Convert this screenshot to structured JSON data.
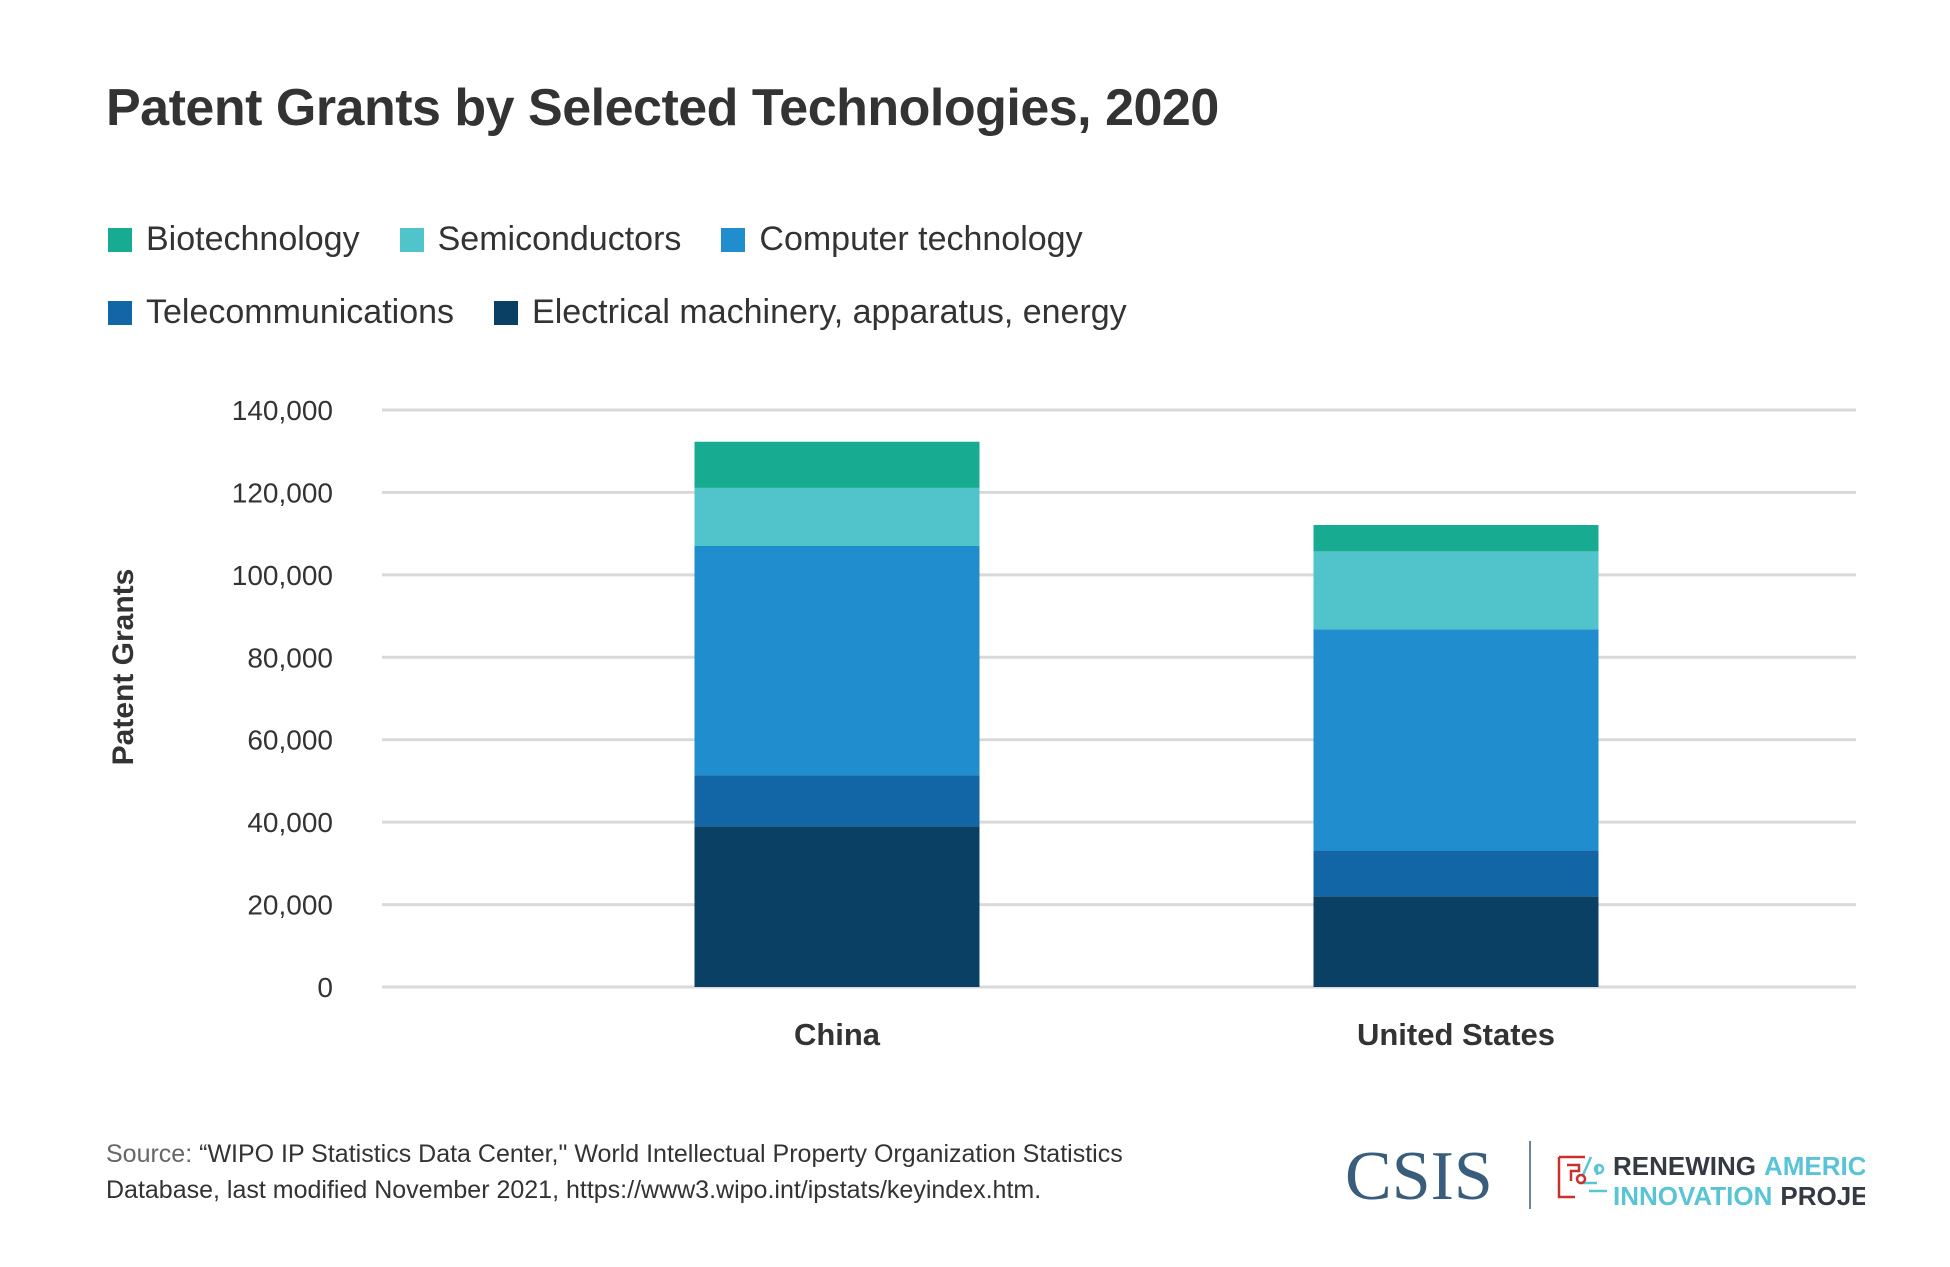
{
  "chart_data": {
    "type": "bar",
    "stacked": true,
    "title": "Patent Grants by Selected Technologies, 2020",
    "xlabel": "",
    "ylabel": "Patent Grants",
    "ylim": [
      0,
      140000
    ],
    "yticks": [
      0,
      20000,
      40000,
      60000,
      80000,
      100000,
      120000,
      140000
    ],
    "ytick_labels": [
      "0",
      "20,000",
      "40,000",
      "60,000",
      "80,000",
      "100,000",
      "120,000",
      "140,000"
    ],
    "grid": true,
    "legend_position": "top",
    "categories": [
      "China",
      "United States"
    ],
    "series": [
      {
        "name": "Electrical machinery, apparatus, energy",
        "color": "#0a4064",
        "values": [
          39000,
          22000
        ]
      },
      {
        "name": "Telecommunications",
        "color": "#1366a6",
        "values": [
          12400,
          11100
        ]
      },
      {
        "name": "Computer technology",
        "color": "#1f8dce",
        "values": [
          55600,
          53700
        ]
      },
      {
        "name": "Semiconductors",
        "color": "#50c3cb",
        "values": [
          14100,
          18900
        ]
      },
      {
        "name": "Biotechnology",
        "color": "#17ac91",
        "values": [
          11200,
          6400
        ]
      }
    ]
  },
  "legend_rows": [
    [
      4,
      3,
      2
    ],
    [
      1,
      0
    ]
  ],
  "source": {
    "label": "Source:",
    "line1": " “WIPO IP Statistics Data Center,\" World Intellectual Property Organization Statistics",
    "line2": "Database, last modified November 2021, https://www3.wipo.int/ipstats/keyindex.htm."
  },
  "logo": {
    "csis": "CSIS",
    "project_line1a": "RENEWING",
    "project_line1b": "AMERICAN",
    "project_line2a": "INNOVATION",
    "project_line2b": "PROJECT"
  }
}
